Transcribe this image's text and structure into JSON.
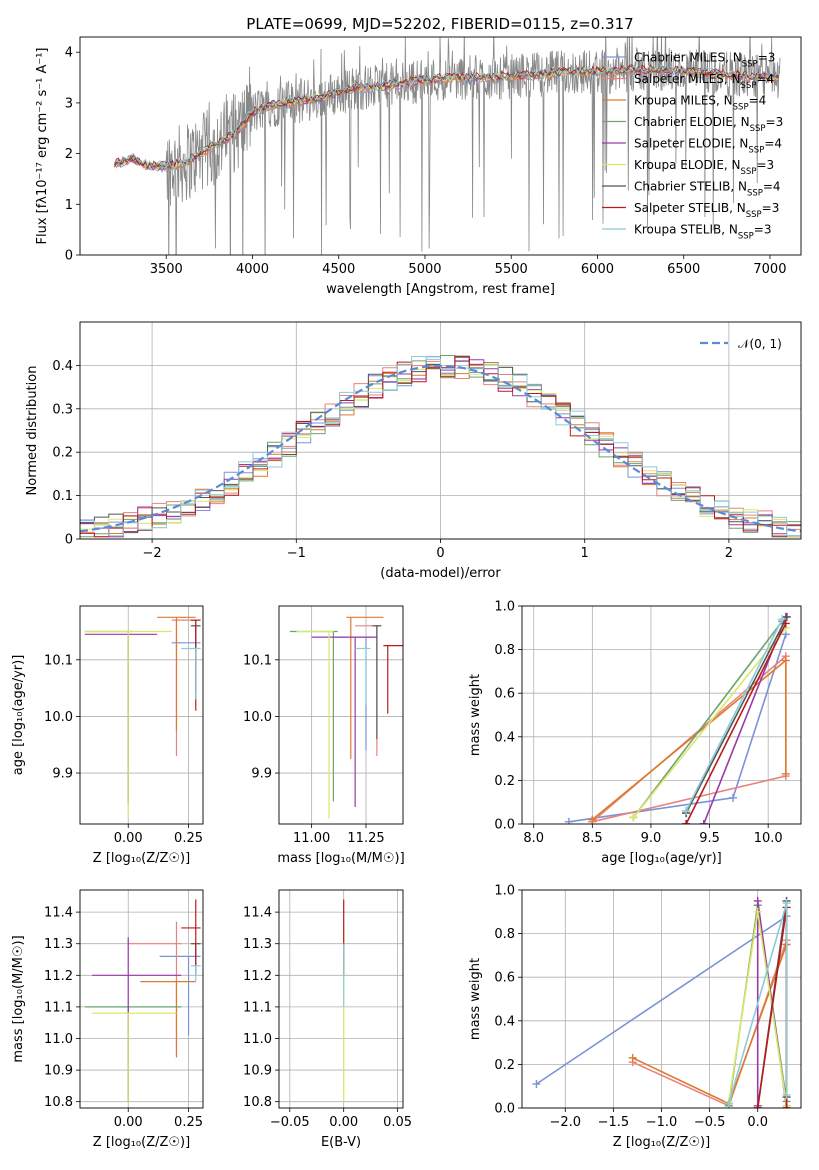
{
  "figure": {
    "title": "PLATE=0699, MJD=52202, FIBERID=0115, z=0.317"
  },
  "colors": {
    "chabrier_miles": "#7b93d6",
    "salpeter_miles": "#e8837c",
    "kroupa_miles": "#dd7a2f",
    "chabrier_elodie": "#6fa36f",
    "salpeter_elodie": "#9a3aa8",
    "kroupa_elodie": "#d8e86a",
    "chabrier_stelib": "#555555",
    "salpeter_stelib": "#b51d1d",
    "kroupa_stelib": "#8ccbd8",
    "spectrum_data": "#888888",
    "gaussian": "#5b8ad6",
    "grid": "#b0b0b0"
  },
  "chart_data": [
    {
      "id": "spectrum",
      "type": "line",
      "xlabel": "wavelength [Angstrom, rest frame]",
      "ylabel": "Flux [fλ10⁻¹⁷ erg cm⁻² s⁻¹ A⁻¹]",
      "xlim": [
        3000,
        7180
      ],
      "ylim": [
        0,
        4.3
      ],
      "xticks": [
        3500,
        4000,
        4500,
        5000,
        5500,
        6000,
        6500,
        7000
      ],
      "yticks": [
        0,
        1,
        2,
        3,
        4
      ],
      "grid": false,
      "legend_position": "right",
      "legend": [
        {
          "label": "Chabrier MILES, N",
          "sub": "SSP",
          "suffix": "=3",
          "color": "#7b93d6"
        },
        {
          "label": "Salpeter MILES, N",
          "sub": "SSP",
          "suffix": "=4",
          "color": "#e8837c"
        },
        {
          "label": "Kroupa MILES, N",
          "sub": "SSP",
          "suffix": "=4",
          "color": "#dd7a2f"
        },
        {
          "label": "Chabrier ELODIE, N",
          "sub": "SSP",
          "suffix": "=3",
          "color": "#6fa36f"
        },
        {
          "label": "Salpeter ELODIE, N",
          "sub": "SSP",
          "suffix": "=4",
          "color": "#9a3aa8"
        },
        {
          "label": "Kroupa ELODIE, N",
          "sub": "SSP",
          "suffix": "=3",
          "color": "#d8e86a"
        },
        {
          "label": "Chabrier STELIB, N",
          "sub": "SSP",
          "suffix": "=4",
          "color": "#555555"
        },
        {
          "label": "Salpeter STELIB, N",
          "sub": "SSP",
          "suffix": "=3",
          "color": "#b51d1d"
        },
        {
          "label": "Kroupa STELIB, N",
          "sub": "SSP",
          "suffix": "=3",
          "color": "#8ccbd8"
        }
      ],
      "data_continuum": {
        "x": [
          3200,
          3300,
          3400,
          3500,
          3600,
          3700,
          3800,
          3900,
          4000,
          4100,
          4200,
          4300,
          4400,
          4500,
          4600,
          4700,
          4800,
          4900,
          5000,
          5200,
          5400,
          5600,
          5800,
          6000,
          6200,
          6400,
          6600,
          6800,
          7000
        ],
        "y": [
          1.8,
          1.9,
          1.75,
          1.75,
          1.8,
          2.0,
          2.2,
          2.4,
          2.8,
          2.95,
          3.0,
          3.05,
          3.1,
          3.2,
          3.3,
          3.3,
          3.35,
          3.4,
          3.45,
          3.5,
          3.5,
          3.55,
          3.6,
          3.62,
          3.65,
          3.65,
          3.6,
          3.55,
          3.5
        ]
      }
    },
    {
      "id": "residuals",
      "type": "line",
      "xlabel": "(data-model)/error",
      "ylabel": "Normed distribution",
      "xlim": [
        -2.5,
        2.5
      ],
      "ylim": [
        0,
        0.5
      ],
      "xticks": [
        -2,
        -1,
        0,
        1,
        2
      ],
      "xticklabels": [
        "−2",
        "−1",
        "0",
        "1",
        "2"
      ],
      "yticks": [
        0.0,
        0.1,
        0.2,
        0.3,
        0.4
      ],
      "grid": true,
      "legend_position": "top-right",
      "legend": [
        {
          "label": "𝒩(0, 1)",
          "style": "dashed",
          "color": "#5b8ad6"
        }
      ],
      "gaussian": {
        "mean": 0,
        "sigma": 1
      }
    },
    {
      "id": "age_vs_Z",
      "type": "scatter",
      "xlabel": "Z [log₁₀(Z/Z☉)]",
      "ylabel": "age  [log₁₀(age/yr)]",
      "xlim": [
        -0.2,
        0.31
      ],
      "ylim": [
        9.81,
        10.195
      ],
      "xticks": [
        0.0,
        0.25
      ],
      "xticklabels": [
        "0.00",
        "0.25"
      ],
      "yticks": [
        9.9,
        10.0,
        10.1
      ],
      "yticklabels": [
        "9.9",
        "10.0",
        "10.1"
      ],
      "grid": true,
      "points": [
        {
          "x": 0.28,
          "y": 10.13,
          "xerr": [
            0.1,
            0.02
          ],
          "yerr": [
            0.05,
            0.04
          ],
          "color": "#7b93d6"
        },
        {
          "x": 0.2,
          "y": 10.17,
          "xerr": [
            0.02,
            0.08
          ],
          "yerr": [
            0.24,
            0.0
          ],
          "color": "#e8837c"
        },
        {
          "x": 0.2,
          "y": 10.175,
          "xerr": [
            0.08,
            0.08
          ],
          "yerr": [
            0.2,
            0.0
          ],
          "color": "#dd7a2f"
        },
        {
          "x": 0.0,
          "y": 10.15,
          "xerr": [
            0.18,
            0.02
          ],
          "yerr": [
            0.3,
            0.0
          ],
          "color": "#6fa36f"
        },
        {
          "x": 0.0,
          "y": 10.145,
          "xerr": [
            0.18,
            0.12
          ],
          "yerr": [
            0.3,
            0.0
          ],
          "color": "#9a3aa8"
        },
        {
          "x": 0.0,
          "y": 10.15,
          "xerr": [
            0.18,
            0.18
          ],
          "yerr": [
            0.33,
            0.0
          ],
          "color": "#d8e86a"
        },
        {
          "x": 0.28,
          "y": 10.16,
          "xerr": [
            0.02,
            0.02
          ],
          "yerr": [
            0.12,
            0.0
          ],
          "color": "#555555"
        },
        {
          "x": 0.28,
          "y": 10.17,
          "xerr": [
            0.02,
            0.02
          ],
          "yerr": [
            0.16,
            0.0
          ],
          "color": "#b51d1d"
        },
        {
          "x": 0.28,
          "y": 10.12,
          "xerr": [
            0.06,
            0.02
          ],
          "yerr": [
            0.09,
            0.0
          ],
          "color": "#8ccbd8"
        }
      ]
    },
    {
      "id": "age_vs_mass",
      "type": "scatter",
      "xlabel": "mass [log₁₀(M/M☉)]",
      "ylabel": "",
      "xlim": [
        10.85,
        11.42
      ],
      "ylim": [
        9.81,
        10.195
      ],
      "xticks": [
        11.0,
        11.25
      ],
      "xticklabels": [
        "11.00",
        "11.25"
      ],
      "yticks": [
        9.9,
        10.0,
        10.1
      ],
      "yticklabels": [
        "9.9",
        "10.0",
        "10.1"
      ],
      "grid": true,
      "points": [
        {
          "x": 11.25,
          "y": 10.14,
          "xerr": [
            0.15,
            0.02
          ],
          "yerr": [
            0.2,
            0.0
          ],
          "color": "#7b93d6"
        },
        {
          "x": 11.3,
          "y": 10.16,
          "xerr": [
            0.1,
            0.02
          ],
          "yerr": [
            0.23,
            0.0
          ],
          "color": "#e8837c"
        },
        {
          "x": 11.18,
          "y": 10.175,
          "xerr": [
            0.02,
            0.15
          ],
          "yerr": [
            0.25,
            0.0
          ],
          "color": "#dd7a2f"
        },
        {
          "x": 11.1,
          "y": 10.15,
          "xerr": [
            0.2,
            0.02
          ],
          "yerr": [
            0.3,
            0.0
          ],
          "color": "#6fa36f"
        },
        {
          "x": 11.2,
          "y": 10.14,
          "xerr": [
            0.2,
            0.1
          ],
          "yerr": [
            0.3,
            0.0
          ],
          "color": "#9a3aa8"
        },
        {
          "x": 11.08,
          "y": 10.15,
          "xerr": [
            0.15,
            0.02
          ],
          "yerr": [
            0.33,
            0.0
          ],
          "color": "#d8e86a"
        },
        {
          "x": 11.3,
          "y": 10.16,
          "xerr": [
            0.02,
            0.02
          ],
          "yerr": [
            0.2,
            0.0
          ],
          "color": "#555555"
        },
        {
          "x": 11.35,
          "y": 10.125,
          "xerr": [
            0.02,
            0.1
          ],
          "yerr": [
            0.12,
            0.0
          ],
          "color": "#b51d1d"
        },
        {
          "x": 11.25,
          "y": 10.12,
          "xerr": [
            0.05,
            0.02
          ],
          "yerr": [
            0.1,
            0.0
          ],
          "color": "#8ccbd8"
        }
      ]
    },
    {
      "id": "weight_vs_age",
      "type": "line",
      "xlabel": "age  [log₁₀(age/yr)]",
      "ylabel": "mass weight",
      "xlim": [
        7.9,
        10.28
      ],
      "ylim": [
        0,
        1.0
      ],
      "xticks": [
        8.0,
        8.5,
        9.0,
        9.5,
        10.0
      ],
      "xticklabels": [
        "8.0",
        "8.5",
        "9.0",
        "9.5",
        "10.0"
      ],
      "yticks": [
        0.0,
        0.2,
        0.4,
        0.6,
        0.8,
        1.0
      ],
      "yticklabels": [
        "0.0",
        "0.2",
        "0.4",
        "0.6",
        "0.8",
        "1.0"
      ],
      "grid": true,
      "series": [
        {
          "x": [
            8.3,
            9.7,
            10.15
          ],
          "y": [
            0.01,
            0.12,
            0.87
          ],
          "color": "#7b93d6"
        },
        {
          "x": [
            8.5,
            10.15,
            10.15,
            8.5
          ],
          "y": [
            0.01,
            0.22,
            0.77,
            0.01
          ],
          "color": "#e8837c"
        },
        {
          "x": [
            8.5,
            10.15,
            10.15
          ],
          "y": [
            0.02,
            0.75,
            0.23
          ],
          "color": "#dd7a2f"
        },
        {
          "x": [
            8.85,
            10.12,
            8.85
          ],
          "y": [
            0.03,
            0.93,
            0.03
          ],
          "color": "#6fa36f"
        },
        {
          "x": [
            9.45,
            10.15,
            9.45
          ],
          "y": [
            0.0,
            0.95,
            0.0
          ],
          "color": "#9a3aa8"
        },
        {
          "x": [
            8.85,
            10.15,
            8.85
          ],
          "y": [
            0.03,
            0.9,
            0.03
          ],
          "color": "#d8e86a"
        },
        {
          "x": [
            9.3,
            10.16,
            9.3
          ],
          "y": [
            0.05,
            0.95,
            0.05
          ],
          "color": "#555555"
        },
        {
          "x": [
            9.3,
            10.15,
            9.3
          ],
          "y": [
            0.0,
            0.92,
            0.0
          ],
          "color": "#b51d1d"
        },
        {
          "x": [
            9.3,
            10.12,
            9.3
          ],
          "y": [
            0.06,
            0.94,
            0.06
          ],
          "color": "#8ccbd8"
        }
      ]
    },
    {
      "id": "mass_vs_Z",
      "type": "scatter",
      "xlabel": "Z [log₁₀(Z/Z☉)]",
      "ylabel": "mass [log₁₀(M/M☉)]",
      "xlim": [
        -0.2,
        0.31
      ],
      "ylim": [
        10.78,
        11.47
      ],
      "xticks": [
        0.0,
        0.25
      ],
      "xticklabels": [
        "0.00",
        "0.25"
      ],
      "yticks": [
        10.8,
        10.9,
        11.0,
        11.1,
        11.2,
        11.3,
        11.4
      ],
      "yticklabels": [
        "10.8",
        "10.9",
        "11.0",
        "11.1",
        "11.2",
        "11.3",
        "11.4"
      ],
      "grid": true,
      "points": [
        {
          "x": 0.25,
          "y": 11.26,
          "xerr": [
            0.12,
            0.05
          ],
          "yerr": [
            0.25,
            0.0
          ],
          "color": "#7b93d6"
        },
        {
          "x": 0.2,
          "y": 11.3,
          "xerr": [
            0.2,
            0.02
          ],
          "yerr": [
            0.35,
            0.07
          ],
          "color": "#e8837c"
        },
        {
          "x": 0.2,
          "y": 11.18,
          "xerr": [
            0.15,
            0.08
          ],
          "yerr": [
            0.24,
            0.0
          ],
          "color": "#dd7a2f"
        },
        {
          "x": 0.0,
          "y": 11.1,
          "xerr": [
            0.18,
            0.22
          ],
          "yerr": [
            0.3,
            0.0
          ],
          "color": "#6fa36f"
        },
        {
          "x": 0.0,
          "y": 11.2,
          "xerr": [
            0.15,
            0.22
          ],
          "yerr": [
            0.4,
            0.12
          ],
          "color": "#9a3aa8"
        },
        {
          "x": 0.0,
          "y": 11.08,
          "xerr": [
            0.15,
            0.2
          ],
          "yerr": [
            0.28,
            0.0
          ],
          "color": "#d8e86a"
        },
        {
          "x": 0.28,
          "y": 11.3,
          "xerr": [
            0.02,
            0.02
          ],
          "yerr": [
            0.1,
            0.0
          ],
          "color": "#555555"
        },
        {
          "x": 0.28,
          "y": 11.35,
          "xerr": [
            0.06,
            0.02
          ],
          "yerr": [
            0.12,
            0.09
          ],
          "color": "#b51d1d"
        },
        {
          "x": 0.28,
          "y": 11.23,
          "xerr": [
            0.02,
            0.02
          ],
          "yerr": [
            0.05,
            0.0
          ],
          "color": "#8ccbd8"
        }
      ]
    },
    {
      "id": "mass_vs_ebv",
      "type": "scatter",
      "xlabel": "E(B-V)",
      "ylabel": "",
      "xlim": [
        -0.06,
        0.055
      ],
      "ylim": [
        10.78,
        11.47
      ],
      "xticks": [
        -0.05,
        0.0,
        0.05
      ],
      "xticklabels": [
        "−0.05",
        "0.00",
        "0.05"
      ],
      "yticks": [
        10.8,
        10.9,
        11.0,
        11.1,
        11.2,
        11.3,
        11.4
      ],
      "yticklabels": [
        "10.8",
        "10.9",
        "11.0",
        "11.1",
        "11.2",
        "11.3",
        "11.4"
      ],
      "grid": true,
      "points": [
        {
          "x": 0.0,
          "y": 11.25,
          "xerr": [
            0.0,
            0.0
          ],
          "yerr": [
            0.45,
            0.1
          ],
          "color": "#d8e86a"
        },
        {
          "x": 0.0,
          "y": 11.3,
          "xerr": [
            0.0,
            0.0
          ],
          "yerr": [
            0.1,
            0.14
          ],
          "color": "#b51d1d"
        },
        {
          "x": 0.0,
          "y": 11.2,
          "xerr": [
            0.0,
            0.0
          ],
          "yerr": [
            0.1,
            0.1
          ],
          "color": "#8ccbd8"
        }
      ]
    },
    {
      "id": "weight_vs_Z",
      "type": "line",
      "xlabel": "Z [log₁₀(Z/Z☉)]",
      "ylabel": "mass weight",
      "xlim": [
        -2.45,
        0.45
      ],
      "ylim": [
        0,
        1.0
      ],
      "xticks": [
        -2.0,
        -1.5,
        -1.0,
        -0.5,
        0.0
      ],
      "xticklabels": [
        "−2.0",
        "−1.5",
        "−1.0",
        "−0.5",
        "0.0"
      ],
      "yticks": [
        0.0,
        0.2,
        0.4,
        0.6,
        0.8,
        1.0
      ],
      "yticklabels": [
        "0.0",
        "0.2",
        "0.4",
        "0.6",
        "0.8",
        "1.0"
      ],
      "grid": true,
      "series": [
        {
          "x": [
            -2.3,
            0.3,
            0.3
          ],
          "y": [
            0.11,
            0.88,
            0.01
          ],
          "color": "#7b93d6"
        },
        {
          "x": [
            -1.3,
            -0.3,
            0.3
          ],
          "y": [
            0.21,
            0.01,
            0.77
          ],
          "color": "#e8837c"
        },
        {
          "x": [
            -1.3,
            -0.3,
            0.3,
            0.3
          ],
          "y": [
            0.23,
            0.02,
            0.75,
            0.01
          ],
          "color": "#dd7a2f"
        },
        {
          "x": [
            -0.3,
            0.0,
            0.3
          ],
          "y": [
            0.01,
            0.93,
            0.03
          ],
          "color": "#6fa36f"
        },
        {
          "x": [
            0.0,
            0.0,
            0.3
          ],
          "y": [
            0.01,
            0.95,
            0.0
          ],
          "color": "#9a3aa8"
        },
        {
          "x": [
            -0.3,
            0.0,
            0.3
          ],
          "y": [
            0.03,
            0.9,
            0.01
          ],
          "color": "#d8e86a"
        },
        {
          "x": [
            0.0,
            0.3,
            0.3
          ],
          "y": [
            0.0,
            0.95,
            0.05
          ],
          "color": "#555555"
        },
        {
          "x": [
            0.0,
            0.3,
            0.3
          ],
          "y": [
            0.0,
            0.92,
            0.0
          ],
          "color": "#b51d1d"
        },
        {
          "x": [
            -0.3,
            0.3,
            0.3
          ],
          "y": [
            0.02,
            0.94,
            0.06
          ],
          "color": "#8ccbd8"
        }
      ]
    }
  ]
}
